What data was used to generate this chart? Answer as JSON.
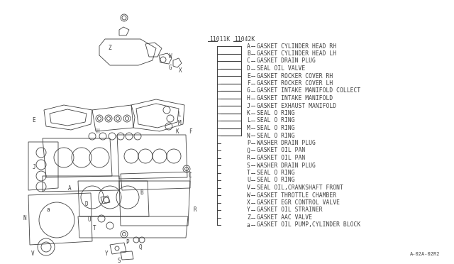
{
  "bg_color": "#ffffff",
  "text_color": "#404040",
  "line_color": "#404040",
  "diagram_color": "#404040",
  "part_num_left": "11011K",
  "part_num_right": "11042K",
  "items": [
    {
      "code": "A",
      "desc": "GASKET CYLINDER HEAD RH"
    },
    {
      "code": "B",
      "desc": "GASKET CYLINDER HEAD LH"
    },
    {
      "code": "C",
      "desc": "GASKET DRAIN PLUG"
    },
    {
      "code": "D",
      "desc": "SEAL OIL VALVE"
    },
    {
      "code": "E",
      "desc": "GASKET ROCKER COVER RH"
    },
    {
      "code": "F",
      "desc": "GASKET ROCKER COVER LH"
    },
    {
      "code": "G",
      "desc": "GASKET INTAKE MANIFOLD COLLECT"
    },
    {
      "code": "H",
      "desc": "GASKET INTAKE MANIFOLD"
    },
    {
      "code": "J",
      "desc": "GASKET EXHAUST MANIFOLD"
    },
    {
      "code": "K",
      "desc": "SEAL O RING"
    },
    {
      "code": "L",
      "desc": "SEAL O RING"
    },
    {
      "code": "M",
      "desc": "SEAL O RING"
    },
    {
      "code": "N",
      "desc": "SEAL O RING"
    },
    {
      "code": "P",
      "desc": "WASHER DRAIN PLUG"
    },
    {
      "code": "Q",
      "desc": "GASKET OIL PAN"
    },
    {
      "code": "R",
      "desc": "GASKET OIL PAN"
    },
    {
      "code": "S",
      "desc": "WASHER DRAIN PLUG"
    },
    {
      "code": "T",
      "desc": "SEAL O RING"
    },
    {
      "code": "U",
      "desc": "SEAL O RING"
    },
    {
      "code": "V",
      "desc": "SEAL OIL,CRANKSHAFT FRONT"
    },
    {
      "code": "W",
      "desc": "GASKET THROTTLE CHAMBER"
    },
    {
      "code": "X",
      "desc": "GASKET EGR CONTROL VALVE"
    },
    {
      "code": "Y",
      "desc": "GASKET OIL STRAINER"
    },
    {
      "code": "Z",
      "desc": "GASKET AAC VALVE"
    },
    {
      "code": "a",
      "desc": "GASKET OIL PUMP,CYLINDER BLOCK"
    }
  ],
  "bracket_count": 13,
  "footer_text": "A-02A-02R2",
  "font_size": 5.8,
  "lw": 0.6
}
